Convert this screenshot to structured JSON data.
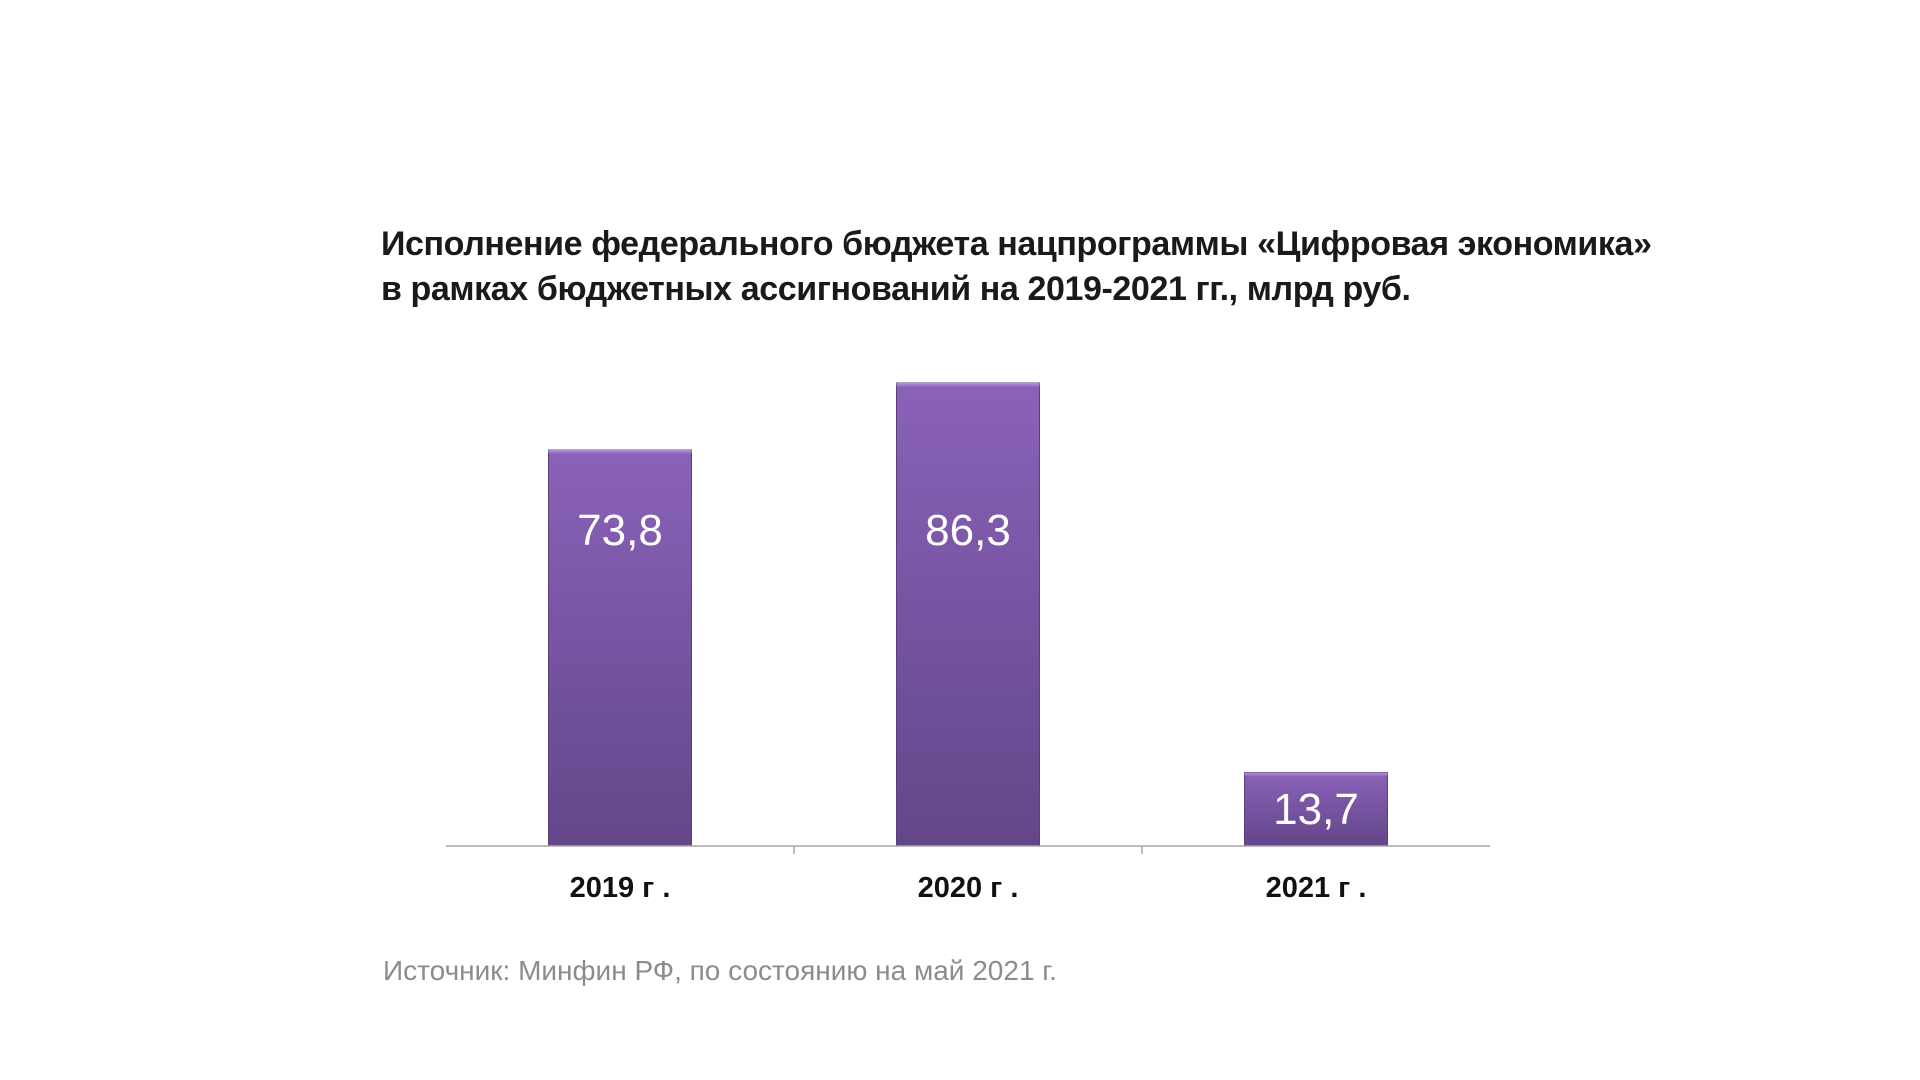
{
  "chart_data": {
    "type": "bar",
    "title_lines": [
      "Исполнение федерального бюджета нацпрограммы «Цифровая экономика»",
      "в рамках бюджетных ассигнований на 2019-2021 гг., млрд руб."
    ],
    "categories": [
      "2019 г .",
      "2020 г .",
      "2021 г ."
    ],
    "values": [
      73.8,
      86.3,
      13.7
    ],
    "value_labels": [
      "73,8",
      "86,3",
      "13,7"
    ],
    "ylim": [
      0,
      86.3
    ],
    "grid": false,
    "legend": "none",
    "bar_color_top": "#8a62b8",
    "bar_color_bottom": "#63468a",
    "axis_color": "#a6a6a6"
  },
  "footer": {
    "source": "Источник: Минфин РФ, по состоянию на май 2021 г."
  }
}
